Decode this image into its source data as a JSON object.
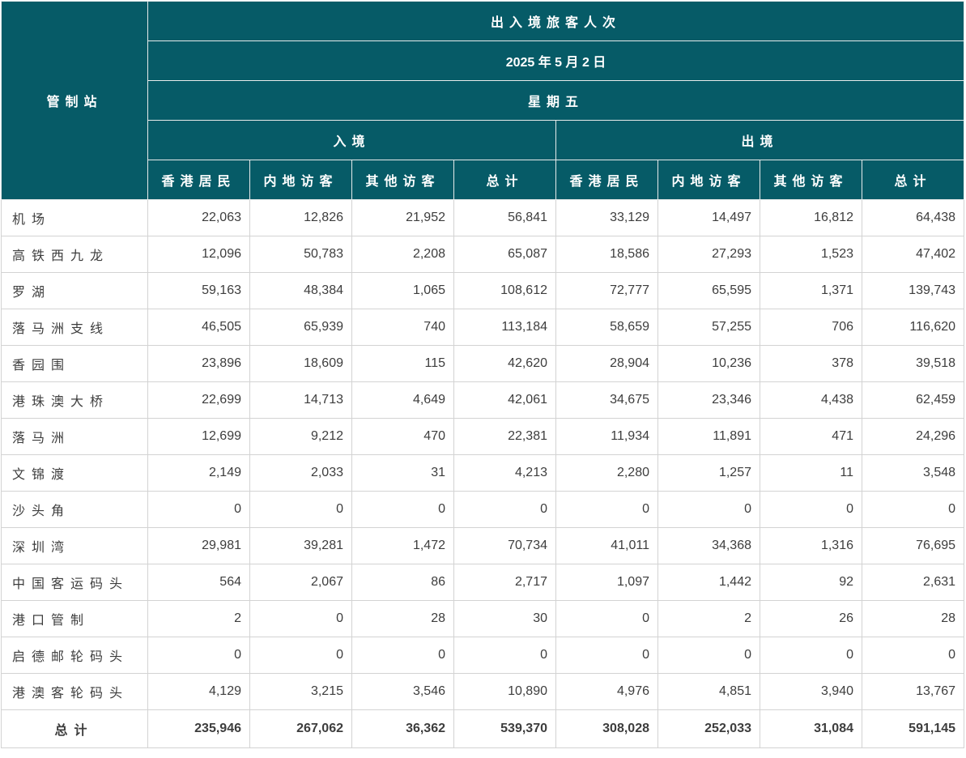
{
  "colors": {
    "header_bg": "#065b67",
    "header_text": "#ffffff",
    "body_text": "#3d3d3d",
    "grid_border": "#d3d3d3",
    "header_border": "#e7ebeb"
  },
  "chart_data": {
    "type": "table",
    "title": "出入境旅客人次",
    "date": "2025 年 5 月 2 日",
    "weekday": "星期五",
    "station_column_header": "管制站",
    "direction_headers": {
      "arrival": "入境",
      "departure": "出境"
    },
    "sub_columns": [
      "香港居民",
      "内地访客",
      "其他访客",
      "总计"
    ],
    "rows": [
      {
        "station": "机场",
        "arrival": [
          22063,
          12826,
          21952,
          56841
        ],
        "departure": [
          33129,
          14497,
          16812,
          64438
        ]
      },
      {
        "station": "高铁西九龙",
        "arrival": [
          12096,
          50783,
          2208,
          65087
        ],
        "departure": [
          18586,
          27293,
          1523,
          47402
        ]
      },
      {
        "station": "罗湖",
        "arrival": [
          59163,
          48384,
          1065,
          108612
        ],
        "departure": [
          72777,
          65595,
          1371,
          139743
        ]
      },
      {
        "station": "落马洲支线",
        "arrival": [
          46505,
          65939,
          740,
          113184
        ],
        "departure": [
          58659,
          57255,
          706,
          116620
        ]
      },
      {
        "station": "香园围",
        "arrival": [
          23896,
          18609,
          115,
          42620
        ],
        "departure": [
          28904,
          10236,
          378,
          39518
        ]
      },
      {
        "station": "港珠澳大桥",
        "arrival": [
          22699,
          14713,
          4649,
          42061
        ],
        "departure": [
          34675,
          23346,
          4438,
          62459
        ]
      },
      {
        "station": "落马洲",
        "arrival": [
          12699,
          9212,
          470,
          22381
        ],
        "departure": [
          11934,
          11891,
          471,
          24296
        ]
      },
      {
        "station": "文锦渡",
        "arrival": [
          2149,
          2033,
          31,
          4213
        ],
        "departure": [
          2280,
          1257,
          11,
          3548
        ]
      },
      {
        "station": "沙头角",
        "arrival": [
          0,
          0,
          0,
          0
        ],
        "departure": [
          0,
          0,
          0,
          0
        ]
      },
      {
        "station": "深圳湾",
        "arrival": [
          29981,
          39281,
          1472,
          70734
        ],
        "departure": [
          41011,
          34368,
          1316,
          76695
        ]
      },
      {
        "station": "中国客运码头",
        "arrival": [
          564,
          2067,
          86,
          2717
        ],
        "departure": [
          1097,
          1442,
          92,
          2631
        ]
      },
      {
        "station": "港口管制",
        "arrival": [
          2,
          0,
          28,
          30
        ],
        "departure": [
          0,
          2,
          26,
          28
        ]
      },
      {
        "station": "启德邮轮码头",
        "arrival": [
          0,
          0,
          0,
          0
        ],
        "departure": [
          0,
          0,
          0,
          0
        ]
      },
      {
        "station": "港澳客轮码头",
        "arrival": [
          4129,
          3215,
          3546,
          10890
        ],
        "departure": [
          4976,
          4851,
          3940,
          13767
        ]
      }
    ],
    "total": {
      "label": "总计",
      "arrival": [
        235946,
        267062,
        36362,
        539370
      ],
      "departure": [
        308028,
        252033,
        31084,
        591145
      ]
    }
  }
}
